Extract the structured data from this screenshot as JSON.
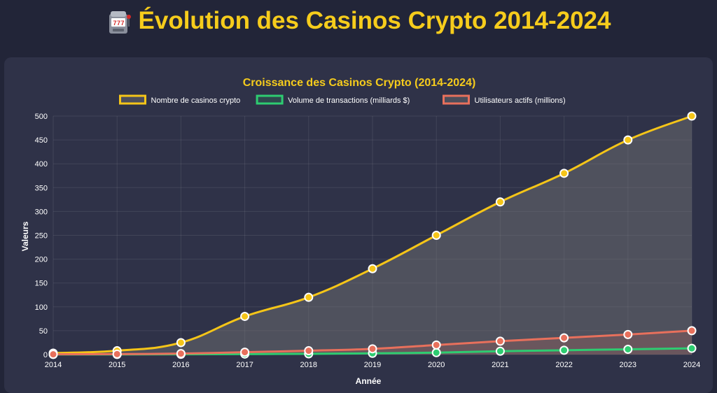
{
  "header": {
    "title": "Évolution des Casinos Crypto 2014-2024",
    "icon": "slot-machine-icon"
  },
  "colors": {
    "accent": "#f6cc1c",
    "background": "#222538",
    "card": "#2f3248",
    "series_casinos": "#f5c518",
    "series_volume": "#2ecc71",
    "series_users": "#e8705c"
  },
  "chart_data": {
    "type": "line",
    "title": "Croissance des Casinos Crypto (2014-2024)",
    "xlabel": "Année",
    "ylabel": "Valeurs",
    "ylim": [
      0,
      500
    ],
    "yticks": [
      0,
      50,
      100,
      150,
      200,
      250,
      300,
      350,
      400,
      450,
      500
    ],
    "grid": true,
    "legend_position": "top",
    "categories": [
      "2014",
      "2015",
      "2016",
      "2017",
      "2018",
      "2019",
      "2020",
      "2021",
      "2022",
      "2023",
      "2024"
    ],
    "series": [
      {
        "name": "Nombre de casinos crypto",
        "color": "#f5c518",
        "fill": true,
        "values": [
          3,
          8,
          25,
          80,
          120,
          180,
          250,
          320,
          380,
          450,
          500
        ]
      },
      {
        "name": "Volume de transactions (milliards $)",
        "color": "#2ecc71",
        "fill": false,
        "values": [
          0.1,
          0.2,
          0.5,
          1,
          1.5,
          2.5,
          4,
          7,
          9,
          11,
          13
        ]
      },
      {
        "name": "Utilisateurs actifs (millions)",
        "color": "#e8705c",
        "fill": true,
        "values": [
          0.5,
          1,
          2,
          5,
          8,
          12,
          20,
          28,
          35,
          42,
          50
        ]
      }
    ]
  }
}
